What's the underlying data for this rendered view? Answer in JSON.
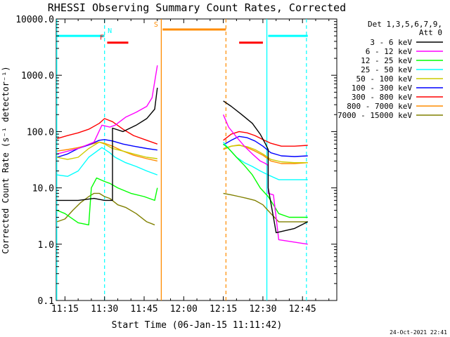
{
  "chart_data": {
    "type": "line",
    "title": "RHESSI Observing Summary Count Rates, Corrected",
    "xlabel": "Start Time (06-Jan-15 11:11:42)",
    "ylabel": "Corrected Count Rate (s⁻¹ detector⁻¹)",
    "ylog": true,
    "ylim": [
      0.1,
      10000
    ],
    "xlim_min": [
      671.7,
      778.0
    ],
    "x_tick_minutes": [
      675,
      690,
      705,
      720,
      735,
      750,
      765
    ],
    "x_tick_labels": [
      "11:15",
      "11:30",
      "11:45",
      "12:00",
      "12:15",
      "12:30",
      "12:45"
    ],
    "y_ticks": [
      0.1,
      1,
      10,
      100,
      1000,
      10000
    ],
    "y_tick_labels": [
      "0.1",
      "1.0",
      "10.0",
      "100.0",
      "1000.0",
      "10000.0"
    ],
    "legend_header": [
      "Det 1,3,5,6,7,9,",
      "Att 0"
    ],
    "timestamp": "24-Oct-2021 22:41",
    "series": [
      {
        "name": "3 - 6 keV",
        "color": "#000000",
        "segments": [
          [
            [
              672,
              6
            ],
            [
              680,
              6
            ],
            [
              686,
              6.5
            ],
            [
              690,
              6
            ],
            [
              692,
              6
            ],
            [
              693,
              6
            ],
            [
              693,
              115
            ],
            [
              697,
              100
            ],
            [
              702,
              130
            ],
            [
              706,
              170
            ],
            [
              709,
              250
            ],
            [
              710,
              600
            ]
          ],
          [
            [
              735,
              350
            ],
            [
              738,
              280
            ],
            [
              742,
              200
            ],
            [
              746,
              140
            ],
            [
              749,
              90
            ],
            [
              751,
              60
            ],
            [
              752,
              48
            ],
            [
              752,
              10
            ],
            [
              754,
              3
            ],
            [
              755,
              1.6
            ],
            [
              762,
              1.9
            ],
            [
              767,
              2.5
            ]
          ]
        ]
      },
      {
        "name": "6 - 12 keV",
        "color": "#ff00ff",
        "segments": [
          [
            [
              672,
              40
            ],
            [
              680,
              50
            ],
            [
              686,
              65
            ],
            [
              689,
              130
            ],
            [
              692,
              120
            ],
            [
              694,
              130
            ],
            [
              698,
              180
            ],
            [
              702,
              220
            ],
            [
              706,
              280
            ],
            [
              708,
              400
            ],
            [
              710,
              1500
            ]
          ],
          [
            [
              735,
              200
            ],
            [
              737,
              120
            ],
            [
              740,
              80
            ],
            [
              743,
              55
            ],
            [
              746,
              40
            ],
            [
              749,
              30
            ],
            [
              751,
              27
            ],
            [
              752,
              25
            ],
            [
              752,
              8
            ],
            [
              754,
              7.5
            ],
            [
              756,
              1.2
            ],
            [
              767,
              1
            ]
          ]
        ]
      },
      {
        "name": "12 - 25 keV",
        "color": "#00ff00",
        "segments": [
          [
            [
              672,
              4
            ],
            [
              675,
              3.5
            ],
            [
              680,
              2.4
            ],
            [
              684,
              2.2
            ],
            [
              685,
              10
            ],
            [
              687,
              15
            ],
            [
              690,
              13
            ],
            [
              692,
              12
            ],
            [
              695,
              10
            ],
            [
              700,
              8
            ],
            [
              705,
              7
            ],
            [
              709,
              6
            ],
            [
              710,
              10
            ]
          ],
          [
            [
              735,
              60
            ],
            [
              737,
              50
            ],
            [
              740,
              35
            ],
            [
              743,
              25
            ],
            [
              746,
              17
            ],
            [
              749,
              10
            ],
            [
              752,
              7
            ],
            [
              754,
              5
            ],
            [
              756,
              3.5
            ],
            [
              760,
              3
            ],
            [
              767,
              3
            ]
          ]
        ]
      },
      {
        "name": "25 - 50 keV",
        "color": "#00ffff",
        "segments": [
          [
            [
              672,
              17
            ],
            [
              676,
              16
            ],
            [
              680,
              20
            ],
            [
              684,
              35
            ],
            [
              689,
              52
            ],
            [
              692,
              42
            ],
            [
              694,
              35
            ],
            [
              698,
              28
            ],
            [
              702,
              24
            ],
            [
              706,
              20
            ],
            [
              710,
              17
            ]
          ],
          [
            [
              735,
              65
            ],
            [
              737,
              50
            ],
            [
              740,
              35
            ],
            [
              743,
              28
            ],
            [
              746,
              24
            ],
            [
              749,
              20
            ],
            [
              752,
              17
            ],
            [
              756,
              14
            ],
            [
              762,
              14
            ],
            [
              767,
              14
            ]
          ]
        ]
      },
      {
        "name": "50 - 100 keV",
        "color": "#cccc00",
        "segments": [
          [
            [
              672,
              35
            ],
            [
              676,
              32
            ],
            [
              680,
              35
            ],
            [
              684,
              50
            ],
            [
              688,
              65
            ],
            [
              690,
              60
            ],
            [
              693,
              50
            ],
            [
              697,
              45
            ],
            [
              701,
              40
            ],
            [
              706,
              35
            ],
            [
              710,
              33
            ]
          ],
          [
            [
              735,
              50
            ],
            [
              738,
              55
            ],
            [
              741,
              57
            ],
            [
              744,
              54
            ],
            [
              747,
              48
            ],
            [
              750,
              40
            ],
            [
              753,
              32
            ],
            [
              757,
              29
            ],
            [
              762,
              28
            ],
            [
              767,
              28
            ]
          ]
        ]
      },
      {
        "name": "100 - 300 keV",
        "color": "#0000ff",
        "segments": [
          [
            [
              672,
              35
            ],
            [
              676,
              40
            ],
            [
              680,
              50
            ],
            [
              684,
              58
            ],
            [
              688,
              70
            ],
            [
              690,
              72
            ],
            [
              693,
              68
            ],
            [
              697,
              60
            ],
            [
              701,
              55
            ],
            [
              706,
              50
            ],
            [
              710,
              47
            ]
          ],
          [
            [
              735,
              58
            ],
            [
              738,
              70
            ],
            [
              741,
              82
            ],
            [
              744,
              78
            ],
            [
              747,
              68
            ],
            [
              750,
              55
            ],
            [
              753,
              42
            ],
            [
              757,
              37
            ],
            [
              762,
              36
            ],
            [
              767,
              37
            ]
          ]
        ]
      },
      {
        "name": "300 - 800 keV",
        "color": "#ff0000",
        "segments": [
          [
            [
              672,
              75
            ],
            [
              676,
              85
            ],
            [
              680,
              95
            ],
            [
              684,
              110
            ],
            [
              688,
              140
            ],
            [
              690,
              170
            ],
            [
              693,
              150
            ],
            [
              697,
              110
            ],
            [
              701,
              85
            ],
            [
              706,
              70
            ],
            [
              710,
              60
            ]
          ],
          [
            [
              735,
              70
            ],
            [
              738,
              90
            ],
            [
              741,
              100
            ],
            [
              744,
              95
            ],
            [
              747,
              85
            ],
            [
              750,
              72
            ],
            [
              753,
              62
            ],
            [
              757,
              55
            ],
            [
              762,
              55
            ],
            [
              767,
              57
            ]
          ]
        ]
      },
      {
        "name": "800 - 7000 keV",
        "color": "#ff8c00",
        "segments": [
          [
            [
              672,
              45
            ],
            [
              676,
              48
            ],
            [
              680,
              52
            ],
            [
              684,
              58
            ],
            [
              688,
              65
            ],
            [
              690,
              62
            ],
            [
              693,
              55
            ],
            [
              697,
              45
            ],
            [
              701,
              38
            ],
            [
              706,
              33
            ],
            [
              710,
              30
            ]
          ],
          [
            [
              735,
              48
            ],
            [
              738,
              55
            ],
            [
              741,
              58
            ],
            [
              744,
              52
            ],
            [
              747,
              45
            ],
            [
              750,
              38
            ],
            [
              753,
              30
            ],
            [
              757,
              27
            ],
            [
              762,
              27
            ],
            [
              767,
              28
            ]
          ]
        ]
      },
      {
        "name": "7000 - 15000 keV",
        "color": "#808000",
        "segments": [
          [
            [
              672,
              2.5
            ],
            [
              675,
              2.8
            ],
            [
              678,
              4
            ],
            [
              681,
              5.5
            ],
            [
              684,
              7
            ],
            [
              686,
              8
            ],
            [
              688,
              8
            ],
            [
              690,
              7
            ],
            [
              692,
              6.5
            ],
            [
              695,
              5
            ],
            [
              698,
              4.5
            ],
            [
              702,
              3.5
            ],
            [
              706,
              2.5
            ],
            [
              709,
              2.2
            ]
          ],
          [
            [
              735,
              8
            ],
            [
              738,
              7.5
            ],
            [
              741,
              7
            ],
            [
              744,
              6.5
            ],
            [
              747,
              6
            ],
            [
              750,
              5
            ],
            [
              753,
              3.5
            ],
            [
              756,
              2.5
            ],
            [
              762,
              2.5
            ],
            [
              767,
              2.5
            ]
          ]
        ]
      }
    ],
    "flags": [
      {
        "label": "N",
        "color": "#00ffff",
        "lines": [
          [
            [
              672,
              5000
            ],
            [
              690,
              5000
            ]
          ],
          [
            [
              752,
              5000
            ],
            [
              767,
              5000
            ]
          ]
        ],
        "label_x": 692,
        "vlines": [
          671.9,
          690,
          752
        ]
      },
      {
        "label": "F",
        "color": "#ff0000",
        "lines": [
          [
            [
              691,
              3800
            ],
            [
              699,
              3800
            ]
          ],
          [
            [
              741,
              3800
            ],
            [
              750,
              3800
            ]
          ]
        ],
        "label_x": 689
      },
      {
        "label": "S",
        "color": "#ff8c00",
        "lines": [
          [
            [
              712,
              6500
            ],
            [
              736,
              6500
            ]
          ]
        ],
        "label_x": 709.5,
        "vlines": [
          711.5
        ]
      }
    ],
    "dashed_vlines": [
      {
        "x": 690.0,
        "color": "#00ffff"
      },
      {
        "x": 736.0,
        "color": "#ff8c00"
      },
      {
        "x": 766.5,
        "color": "#00ffff"
      }
    ],
    "solid_vlines": [
      {
        "x": 671.9,
        "color": "#00ffff"
      },
      {
        "x": 711.5,
        "color": "#ff8c00"
      },
      {
        "x": 751.5,
        "color": "#00ffff"
      }
    ]
  }
}
